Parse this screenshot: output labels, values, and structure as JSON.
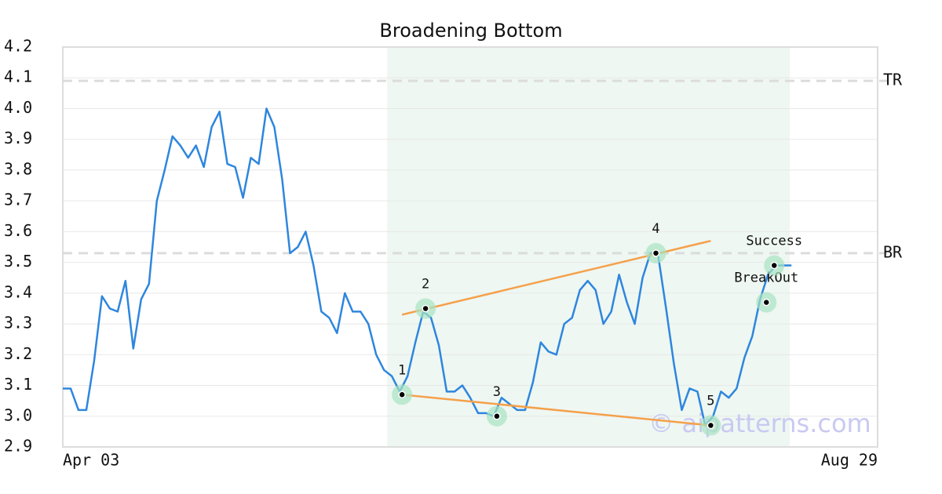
{
  "chart_data": {
    "type": "line",
    "title": "Broadening Bottom",
    "categories": [
      "Apr 03",
      null,
      null,
      null,
      null,
      null,
      null,
      null,
      null,
      null,
      null,
      null,
      null,
      null,
      null,
      null,
      null,
      null,
      null,
      null,
      null,
      null,
      null,
      null,
      null,
      null,
      null,
      null,
      null,
      null,
      null,
      null,
      null,
      null,
      null,
      null,
      null,
      null,
      null,
      null,
      null,
      null,
      null,
      null,
      null,
      null,
      null,
      null,
      null,
      null,
      null,
      null,
      null,
      null,
      null,
      null,
      null,
      null,
      null,
      null,
      null,
      null,
      null,
      null,
      null,
      null,
      null,
      null,
      null,
      null,
      null,
      null,
      null,
      null,
      null,
      null,
      null,
      null,
      null,
      null,
      null,
      null,
      null,
      null,
      null,
      null,
      null,
      null,
      null,
      null,
      null,
      null,
      null,
      null,
      null,
      null,
      null,
      null,
      null,
      null,
      null,
      null,
      null,
      null,
      "Aug 29"
    ],
    "series": [
      {
        "color": "#2e86de",
        "values": [
          3.09,
          3.09,
          3.02,
          3.02,
          3.18,
          3.39,
          3.35,
          3.34,
          3.44,
          3.22,
          3.38,
          3.43,
          3.7,
          3.8,
          3.91,
          3.88,
          3.84,
          3.88,
          3.81,
          3.94,
          3.99,
          3.82,
          3.81,
          3.71,
          3.84,
          3.82,
          4.0,
          3.94,
          3.77,
          3.53,
          3.55,
          3.6,
          3.49,
          3.34,
          3.32,
          3.27,
          3.4,
          3.34,
          3.34,
          3.3,
          3.2,
          3.15,
          3.13,
          3.08,
          3.13,
          3.24,
          3.34,
          3.32,
          3.23,
          3.08,
          3.08,
          3.1,
          3.06,
          3.01,
          3.01,
          3.0,
          3.06,
          3.04,
          3.02,
          3.02,
          3.11,
          3.24,
          3.21,
          3.2,
          3.3,
          3.32,
          3.41,
          3.44,
          3.41,
          3.3,
          3.34,
          3.46,
          3.37,
          3.3,
          3.45,
          3.53,
          3.52,
          3.35,
          3.17,
          3.02,
          3.09,
          3.08,
          2.97,
          3.0,
          3.08,
          3.06,
          3.09,
          3.19,
          3.26,
          3.38,
          3.46,
          3.49,
          3.49,
          3.49,
          null,
          null,
          null,
          null,
          null,
          null,
          null,
          null,
          null,
          null,
          null
        ]
      }
    ],
    "ylim": [
      2.9,
      4.2
    ],
    "yticks": [
      2.9,
      {
        "value": 3,
        "label": "3.0"
      },
      3.1,
      3.2,
      3.3,
      3.4,
      3.5,
      3.6,
      3.7,
      3.8,
      3.9,
      {
        "value": 4,
        "label": "4.0"
      },
      4.1,
      4.2
    ],
    "grid": true,
    "pattern_range": [
      41.4,
      92.8
    ],
    "reference_lines": [
      {
        "label": "TR",
        "value": 4.09
      },
      {
        "label": "BR",
        "value": 3.53
      }
    ],
    "trend_lines": [
      {
        "color": "#f5a04a",
        "x": [
          43.3,
          82.7
        ],
        "values": [
          3.33,
          3.57
        ]
      },
      {
        "color": "#f5a04a",
        "x": [
          43.3,
          82.7
        ],
        "values": [
          3.07,
          2.97
        ]
      }
    ],
    "markers": [
      {
        "label": "1",
        "x": 43.3,
        "value": 3.07
      },
      {
        "label": "2",
        "x": 46.3,
        "value": 3.35
      },
      {
        "label": "3",
        "x": 55.4,
        "value": 3.0
      },
      {
        "label": "4",
        "x": 75.7,
        "value": 3.53
      },
      {
        "label": "5",
        "x": 82.7,
        "value": 2.97
      },
      {
        "label": "BreakOut",
        "x": 89.8,
        "value": 3.37
      },
      {
        "label": "Success",
        "x": 90.8,
        "value": 3.49
      }
    ],
    "watermark": "© aipatterns.com"
  }
}
